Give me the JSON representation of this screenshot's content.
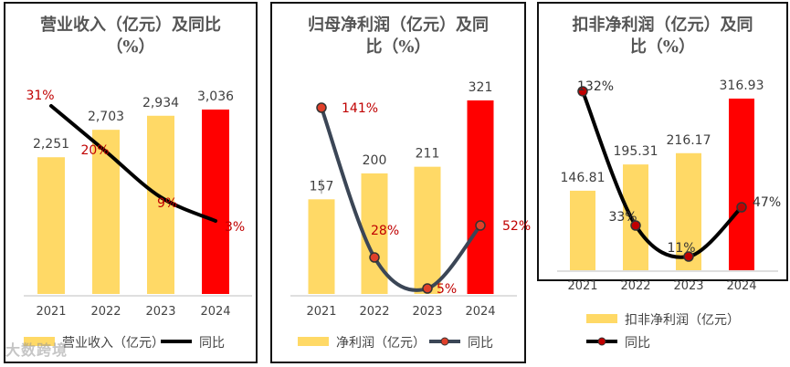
{
  "watermark": "大数跨境",
  "charts": [
    {
      "type": "bar",
      "title": "营业收入（亿元）及同比（%）",
      "title_lines": [
        "营业收入（亿元）及同比",
        "（%）"
      ],
      "categories": [
        "2021",
        "2022",
        "2023",
        "2024"
      ],
      "series": [
        {
          "name": "营业收入（亿元）",
          "kind": "bar",
          "values": [
            2251,
            2703,
            2934,
            3036
          ],
          "labels": [
            "2,251",
            "2,703",
            "2,934",
            "3,036"
          ]
        },
        {
          "name": "同比",
          "kind": "line",
          "values": [
            31,
            20,
            9,
            3
          ],
          "labels": [
            "31%",
            "20%",
            "9%",
            "3%"
          ]
        }
      ],
      "legend_position": "bottom",
      "grid": false,
      "colors": {
        "bar": "#ffd966",
        "highlight_bar": "#ff0000",
        "line": "#000000",
        "line_label": "#c00000"
      }
    },
    {
      "type": "bar",
      "title": "归母净利润（亿元）及同比（%）",
      "title_lines": [
        "归母净利润（亿元）及同",
        "比（%）"
      ],
      "categories": [
        "2021",
        "2022",
        "2023",
        "2024"
      ],
      "series": [
        {
          "name": "净利润（亿元）",
          "kind": "bar",
          "values": [
            157,
            200,
            211,
            321
          ],
          "labels": [
            "157",
            "200",
            "211",
            "321"
          ]
        },
        {
          "name": "同比",
          "kind": "line",
          "values": [
            141,
            28,
            5,
            52
          ],
          "labels": [
            "141%",
            "28%",
            "5%",
            "52%"
          ]
        }
      ],
      "legend_position": "bottom",
      "grid": false,
      "colors": {
        "bar": "#ffd966",
        "highlight_bar": "#ff0000",
        "line": "#3b4656",
        "marker": "#e0402a",
        "line_label": "#c00000"
      }
    },
    {
      "type": "bar",
      "title": "扣非净利润（亿元）及同比（%）",
      "title_lines": [
        "扣非净利润（亿元）及同",
        "比（%）"
      ],
      "categories": [
        "2021",
        "2022",
        "2023",
        "2024"
      ],
      "series": [
        {
          "name": "扣非净利润（亿元）",
          "kind": "bar",
          "values": [
            146.81,
            195.31,
            216.17,
            316.93
          ],
          "labels": [
            "146.81",
            "195.31",
            "216.17",
            "316.93"
          ]
        },
        {
          "name": "同比",
          "kind": "line",
          "values": [
            132,
            33,
            11,
            47
          ],
          "labels": [
            "132%",
            "33%",
            "11%",
            "47%"
          ]
        }
      ],
      "legend_position": "bottom",
      "grid": false,
      "colors": {
        "bar": "#ffd966",
        "highlight_bar": "#ff0000",
        "line": "#000000",
        "marker": "#c00000",
        "line_label": "#333333"
      }
    }
  ]
}
